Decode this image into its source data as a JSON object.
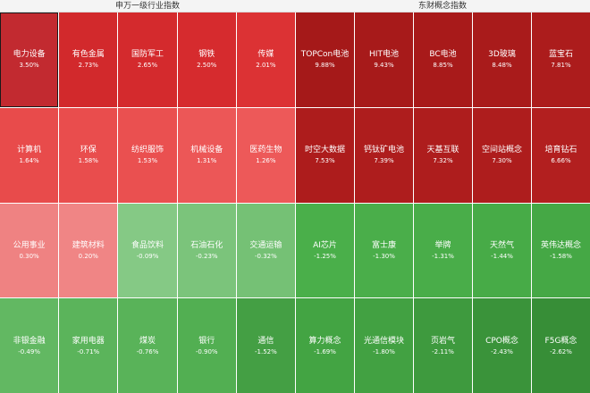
{
  "headers": {
    "left": "申万一级行业指数",
    "right": "东财概念指数"
  },
  "left": [
    {
      "name": "电力设备",
      "pct": "3.50%",
      "color": "#c22a30",
      "selected": true
    },
    {
      "name": "有色金属",
      "pct": "2.73%",
      "color": "#d2292c"
    },
    {
      "name": "国防军工",
      "pct": "2.65%",
      "color": "#d42a2d"
    },
    {
      "name": "钢铁",
      "pct": "2.50%",
      "color": "#d62b2e"
    },
    {
      "name": "传媒",
      "pct": "2.01%",
      "color": "#dc3234"
    },
    {
      "name": "计算机",
      "pct": "1.64%",
      "color": "#e84b4b"
    },
    {
      "name": "环保",
      "pct": "1.58%",
      "color": "#e94d4d"
    },
    {
      "name": "纺织服饰",
      "pct": "1.53%",
      "color": "#ea5050"
    },
    {
      "name": "机械设备",
      "pct": "1.31%",
      "color": "#ec5757"
    },
    {
      "name": "医药生物",
      "pct": "1.26%",
      "color": "#ed5959"
    },
    {
      "name": "公用事业",
      "pct": "0.30%",
      "color": "#ef8282"
    },
    {
      "name": "建筑材料",
      "pct": "0.20%",
      "color": "#f08585"
    },
    {
      "name": "食品饮料",
      "pct": "-0.09%",
      "color": "#85c985"
    },
    {
      "name": "石油石化",
      "pct": "-0.23%",
      "color": "#7bc47b"
    },
    {
      "name": "交通运输",
      "pct": "-0.32%",
      "color": "#75c175"
    },
    {
      "name": "非银金融",
      "pct": "-0.49%",
      "color": "#62b862"
    },
    {
      "name": "家用电器",
      "pct": "-0.71%",
      "color": "#5bb45b"
    },
    {
      "name": "煤炭",
      "pct": "-0.76%",
      "color": "#59b359"
    },
    {
      "name": "银行",
      "pct": "-0.90%",
      "color": "#52af52"
    },
    {
      "name": "通信",
      "pct": "-1.52%",
      "color": "#449f44"
    }
  ],
  "right": [
    {
      "name": "TOPCon电池",
      "pct": "9.88%",
      "color": "#a51919"
    },
    {
      "name": "HIT电池",
      "pct": "9.43%",
      "color": "#a71a1a"
    },
    {
      "name": "BC电池",
      "pct": "8.85%",
      "color": "#a81a1a"
    },
    {
      "name": "3D玻璃",
      "pct": "8.48%",
      "color": "#a91b1b"
    },
    {
      "name": "蓝宝石",
      "pct": "7.81%",
      "color": "#ac1c1c"
    },
    {
      "name": "时空大数据",
      "pct": "7.53%",
      "color": "#ad1c1c"
    },
    {
      "name": "钙钛矿电池",
      "pct": "7.39%",
      "color": "#ae1d1d"
    },
    {
      "name": "天基互联",
      "pct": "7.32%",
      "color": "#ae1d1d"
    },
    {
      "name": "空间站概念",
      "pct": "7.30%",
      "color": "#ae1d1d"
    },
    {
      "name": "培育钻石",
      "pct": "6.66%",
      "color": "#b21f1f"
    },
    {
      "name": "AI芯片",
      "pct": "-1.25%",
      "color": "#4aaf4a"
    },
    {
      "name": "富士康",
      "pct": "-1.30%",
      "color": "#4aae4a"
    },
    {
      "name": "举牌",
      "pct": "-1.31%",
      "color": "#49ad49"
    },
    {
      "name": "天然气",
      "pct": "-1.44%",
      "color": "#47ab47"
    },
    {
      "name": "英伟达概念",
      "pct": "-1.58%",
      "color": "#45a845"
    },
    {
      "name": "算力概念",
      "pct": "-1.69%",
      "color": "#43a443"
    },
    {
      "name": "光通信模块",
      "pct": "-1.80%",
      "color": "#42a142"
    },
    {
      "name": "页岩气",
      "pct": "-2.11%",
      "color": "#3e9a3e"
    },
    {
      "name": "CPO概念",
      "pct": "-2.43%",
      "color": "#3a933a"
    },
    {
      "name": "F5G概念",
      "pct": "-2.62%",
      "color": "#378e37"
    }
  ]
}
